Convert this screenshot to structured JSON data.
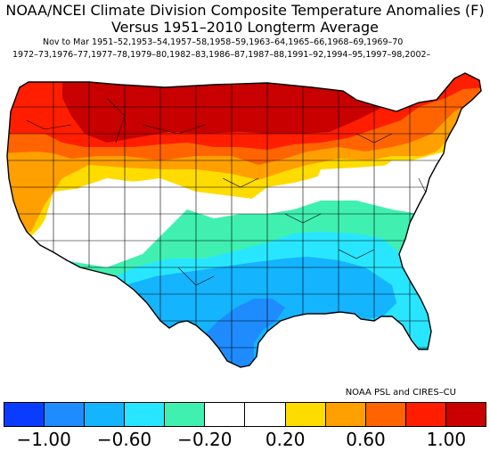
{
  "title_line1": "NOAA/NCEI Climate Division Composite Temperature Anomalies (F)",
  "title_line2": "Versus 1951–2010 Longterm Average",
  "years_line1": "Nov to Mar   1951–52,1953–54,1957–58,1958–59,1963–64,1965–66,1968–69,1969–70",
  "years_line2": "1972–73,1976–77,1977–78,1979–80,1982–83,1986–87,1987–88,1991–92,1994–95,1997–98,2002–",
  "credit": "NOAA PSL and CIRES–CU",
  "colorbar": {
    "colors": [
      "#0a3cff",
      "#1e8cff",
      "#14b4ff",
      "#28e6ff",
      "#40f0b0",
      "#ffffff",
      "#ffffff",
      "#ffdc00",
      "#ffa000",
      "#ff6400",
      "#ff1e00",
      "#c80000"
    ],
    "tick_labels": [
      "−1.00",
      "−0.60",
      "−0.20",
      "0.20",
      "0.60",
      "1.00"
    ]
  },
  "map": {
    "colors": {
      "darkred": "#c80000",
      "red": "#ff1e00",
      "orangered": "#ff6400",
      "orange": "#ffa000",
      "yellow": "#ffdc00",
      "white": "#ffffff",
      "teal": "#40f0b0",
      "cyan": "#28e6ff",
      "lightblue": "#14b4ff",
      "blue": "#1e8cff"
    }
  }
}
